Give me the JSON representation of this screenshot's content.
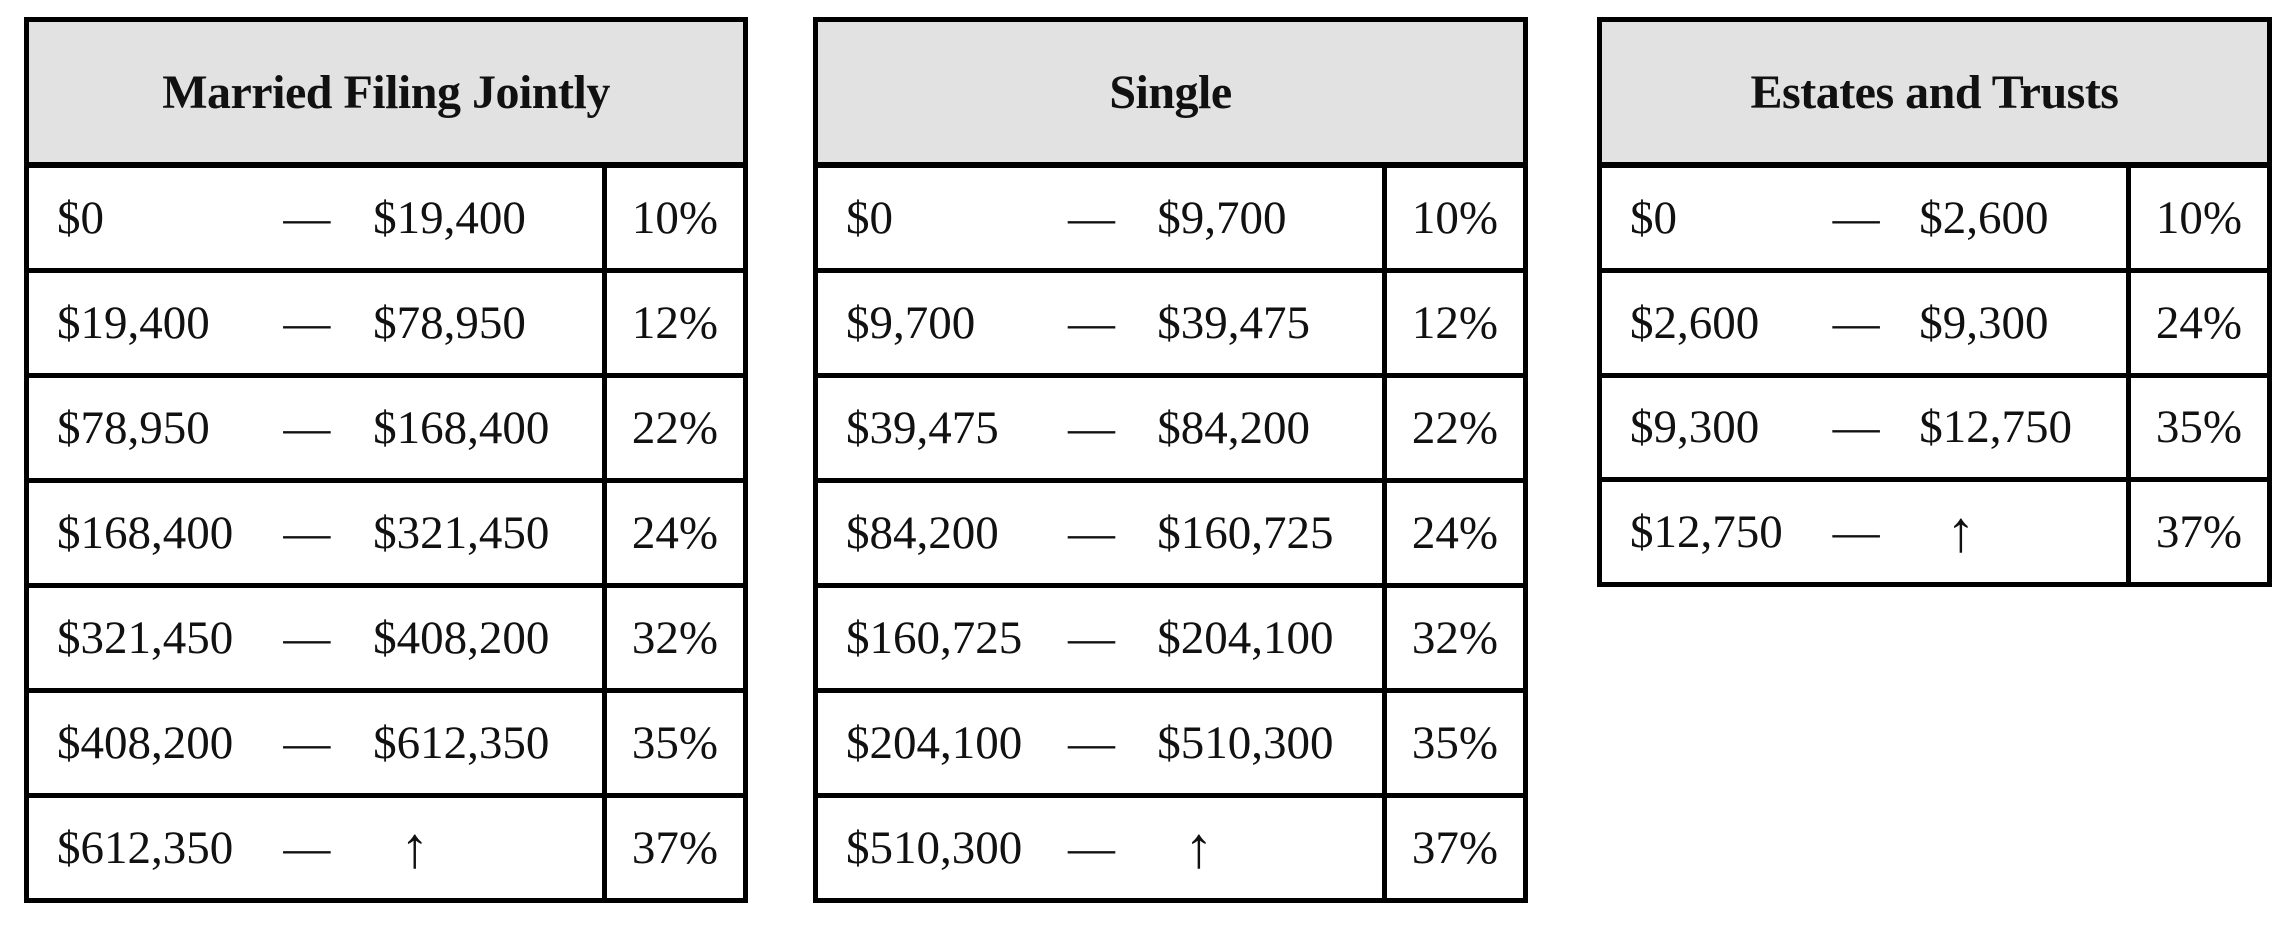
{
  "figure": {
    "description_colors": {
      "header_bg": "#e2e2e2",
      "border": "#000000",
      "text": "#111111",
      "page_bg": "#ffffff"
    }
  },
  "tables": [
    {
      "title": "Married Filing Jointly",
      "rows": [
        {
          "min": "$0",
          "dash": "—",
          "max": "$19,400",
          "rate": "10%"
        },
        {
          "min": "$19,400",
          "dash": "—",
          "max": "$78,950",
          "rate": "12%"
        },
        {
          "min": "$78,950",
          "dash": "—",
          "max": "$168,400",
          "rate": "22%"
        },
        {
          "min": "$168,400",
          "dash": "—",
          "max": "$321,450",
          "rate": "24%"
        },
        {
          "min": "$321,450",
          "dash": "—",
          "max": "$408,200",
          "rate": "32%"
        },
        {
          "min": "$408,200",
          "dash": "—",
          "max": "$612,350",
          "rate": "35%"
        },
        {
          "min": "$612,350",
          "dash": "—",
          "max": "↑",
          "rate": "37%"
        }
      ]
    },
    {
      "title": "Single",
      "rows": [
        {
          "min": "$0",
          "dash": "—",
          "max": "$9,700",
          "rate": "10%"
        },
        {
          "min": "$9,700",
          "dash": "—",
          "max": "$39,475",
          "rate": "12%"
        },
        {
          "min": "$39,475",
          "dash": "—",
          "max": "$84,200",
          "rate": "22%"
        },
        {
          "min": "$84,200",
          "dash": "—",
          "max": "$160,725",
          "rate": "24%"
        },
        {
          "min": "$160,725",
          "dash": "—",
          "max": "$204,100",
          "rate": "32%"
        },
        {
          "min": "$204,100",
          "dash": "—",
          "max": "$510,300",
          "rate": "35%"
        },
        {
          "min": "$510,300",
          "dash": "—",
          "max": "↑",
          "rate": "37%"
        }
      ]
    },
    {
      "title": "Estates and Trusts",
      "rows": [
        {
          "min": "$0",
          "dash": "—",
          "max": "$2,600",
          "rate": "10%"
        },
        {
          "min": "$2,600",
          "dash": "—",
          "max": "$9,300",
          "rate": "24%"
        },
        {
          "min": "$9,300",
          "dash": "—",
          "max": "$12,750",
          "rate": "35%"
        },
        {
          "min": "$12,750",
          "dash": "—",
          "max": "↑",
          "rate": "37%"
        }
      ]
    }
  ]
}
